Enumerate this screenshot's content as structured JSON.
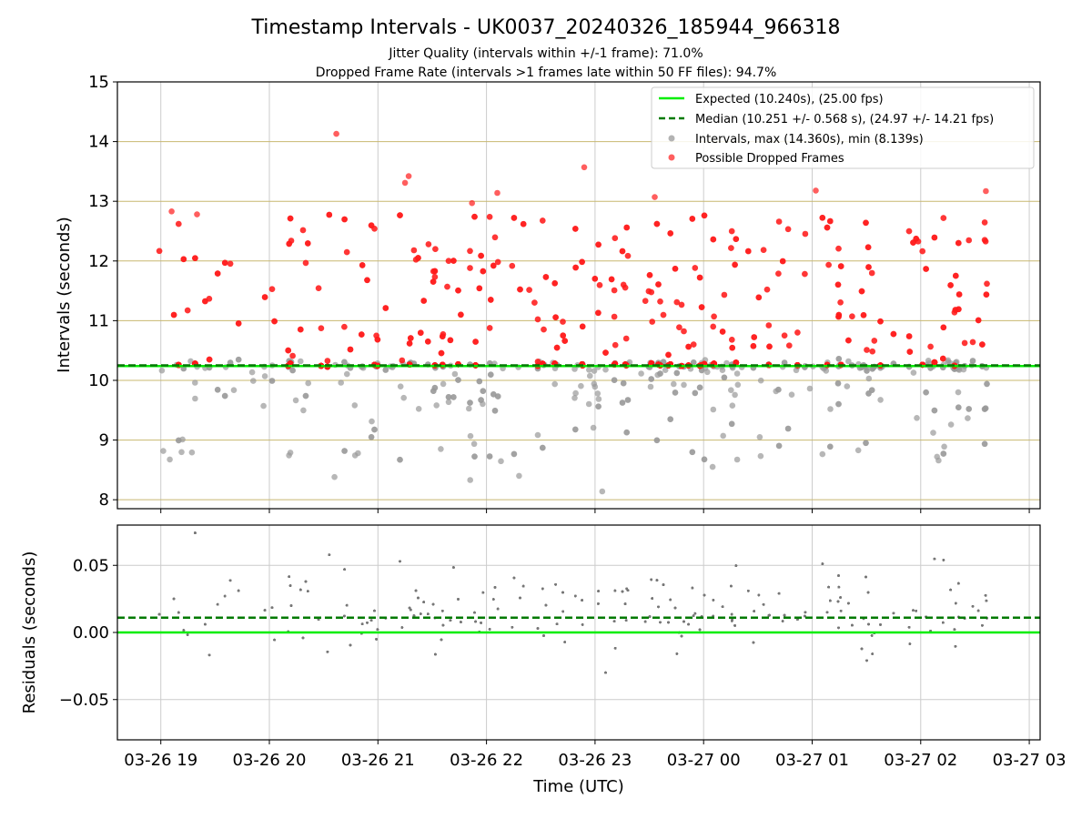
{
  "title": "Timestamp Intervals - UK0037_20240326_185944_966318",
  "subtitle_1": "Jitter Quality (intervals within +/-1 frame): 71.0%",
  "subtitle_2": "Dropped Frame Rate (intervals >1 frames late within 50 FF files): 94.7%",
  "colors": {
    "expected": "#00ee00",
    "median": "#007a00",
    "interval_point": "#999999",
    "dropped_point": "#ff1a1a",
    "residual_point": "#777777",
    "top_grid": "#c8b870",
    "grid": "#cccccc"
  },
  "chart_data": [
    {
      "type": "scatter",
      "ylabel": "Intervals (seconds)",
      "ylim": [
        7.85,
        15
      ],
      "xlim": [
        "2024-03-26 18:36",
        "2024-03-27 03:06"
      ],
      "yticks": [
        8,
        9,
        10,
        11,
        12,
        13,
        14,
        15
      ],
      "ytick_labels": [
        "8",
        "9",
        "10",
        "11",
        "12",
        "13",
        "14",
        "15"
      ],
      "grid": "on",
      "legend_position": "top-right",
      "legend": [
        "Expected (10.240s), (25.00 fps)",
        "Median (10.251 +/- 0.568 s), (24.97 +/- 14.21 fps)",
        "Intervals, max (14.360s), min (8.139s)",
        "Possible Dropped Frames"
      ],
      "expected_value": 10.24,
      "median_value": 10.251,
      "x_range_of_points": [
        "2024-03-26 18:59",
        "2024-03-27 02:38"
      ],
      "intervals_max": 14.36,
      "intervals_min": 8.139,
      "outlier_points_sample": [
        {
          "x": "2024-03-26 20:37",
          "y": 14.13
        },
        {
          "x": "2024-03-26 21:17",
          "y": 13.42
        },
        {
          "x": "2024-03-26 21:15",
          "y": 13.31
        },
        {
          "x": "2024-03-26 22:54",
          "y": 13.57
        },
        {
          "x": "2024-03-26 23:33",
          "y": 13.07
        },
        {
          "x": "2024-03-27 01:02",
          "y": 13.18
        },
        {
          "x": "2024-03-27 02:36",
          "y": 13.17
        },
        {
          "x": "2024-03-26 19:06",
          "y": 12.83
        },
        {
          "x": "2024-03-26 19:20",
          "y": 12.78
        },
        {
          "x": "2024-03-26 21:52",
          "y": 12.97
        },
        {
          "x": "2024-03-26 22:06",
          "y": 13.14
        },
        {
          "x": "2024-03-26 20:36",
          "y": 8.38
        },
        {
          "x": "2024-03-26 21:51",
          "y": 8.33
        },
        {
          "x": "2024-03-26 22:18",
          "y": 8.4
        },
        {
          "x": "2024-03-26 23:04",
          "y": 8.14
        },
        {
          "x": "2024-03-27 00:05",
          "y": 8.55
        },
        {
          "x": "2024-03-27 02:09",
          "y": 8.72
        },
        {
          "x": "2024-03-27 02:13",
          "y": 8.89
        },
        {
          "x": "2024-03-26 20:49",
          "y": 8.78
        },
        {
          "x": "2024-03-26 19:12",
          "y": 9.01
        }
      ]
    },
    {
      "type": "scatter",
      "xlabel": "Time (UTC)",
      "ylabel": "Residuals (seconds)",
      "ylim": [
        -0.08,
        0.08
      ],
      "yticks": [
        -0.05,
        0,
        0.05
      ],
      "ytick_labels": [
        "−0.05",
        "0.00",
        "0.05"
      ],
      "grid": "on",
      "expected_value": 0,
      "median_value": 0.011,
      "xticks": [
        "2024-03-26 19:00",
        "2024-03-26 20:00",
        "2024-03-26 21:00",
        "2024-03-26 22:00",
        "2024-03-26 23:00",
        "2024-03-27 00:00",
        "2024-03-27 01:00",
        "2024-03-27 02:00",
        "2024-03-27 03:00"
      ],
      "xtick_labels": [
        "03-26 19",
        "03-26 20",
        "03-26 21",
        "03-26 22",
        "03-26 23",
        "03-27 00",
        "03-27 01",
        "03-27 02",
        "03-27 03"
      ]
    }
  ]
}
